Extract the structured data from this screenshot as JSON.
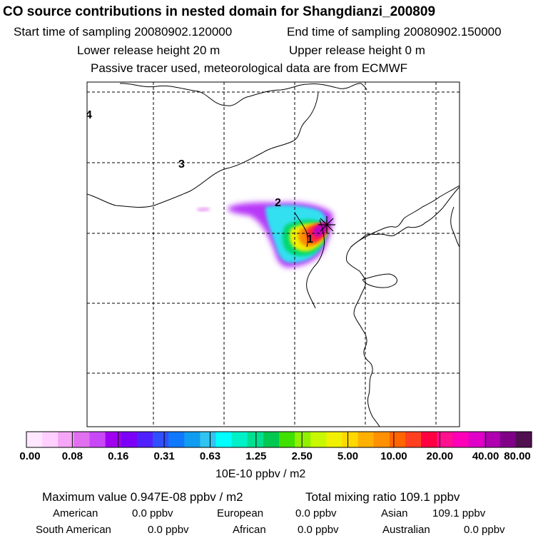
{
  "header": {
    "title": "CO  source contributions in nested domain for Shangdianzi_200809",
    "start_label": "Start time of sampling 20080902.120000",
    "end_label": "End time of sampling 20080902.150000",
    "lower_label": "Lower release height   20 m",
    "upper_label": "Upper release height    0 m",
    "tracer_label": "Passive tracer used, meteorological data are from ECMWF"
  },
  "map": {
    "contour_labels": [
      "1",
      "2",
      "3",
      "4"
    ]
  },
  "colorbar": {
    "colors": [
      "#ffe8ff",
      "#ffd0ff",
      "#f6a6f6",
      "#e070f0",
      "#c848f8",
      "#a000f0",
      "#7c00f8",
      "#5020ff",
      "#3050ff",
      "#1078ff",
      "#109cf0",
      "#30c4f0",
      "#00ffff",
      "#00f0c8",
      "#00e090",
      "#00c850",
      "#40e000",
      "#90f000",
      "#c8f800",
      "#f0f000",
      "#ffd800",
      "#ffb000",
      "#ff9000",
      "#ff6400",
      "#ff4020",
      "#ff0040",
      "#ff1090",
      "#ff00b8",
      "#e000c8",
      "#b000b0",
      "#800088",
      "#501050"
    ],
    "tick_labels": [
      "0.00",
      "0.08",
      "0.16",
      "0.31",
      "0.63",
      "1.25",
      "2.50",
      "5.00",
      "10.00",
      "20.00",
      "40.00",
      "80.00"
    ],
    "unit": "10E-10 ppbv / m2"
  },
  "stats": {
    "max_label": "Maximum value  0.947E-08 ppbv / m2",
    "total_label": "Total mixing ratio      109.1 ppbv",
    "regions": [
      {
        "name": "American",
        "value": "0.0 ppbv"
      },
      {
        "name": "European",
        "value": "0.0 ppbv"
      },
      {
        "name": "Asian",
        "value": "109.1 ppbv"
      },
      {
        "name": "South American",
        "value": "0.0 ppbv"
      },
      {
        "name": "African",
        "value": "0.0 ppbv"
      },
      {
        "name": "Australian",
        "value": "0.0 ppbv"
      }
    ]
  }
}
